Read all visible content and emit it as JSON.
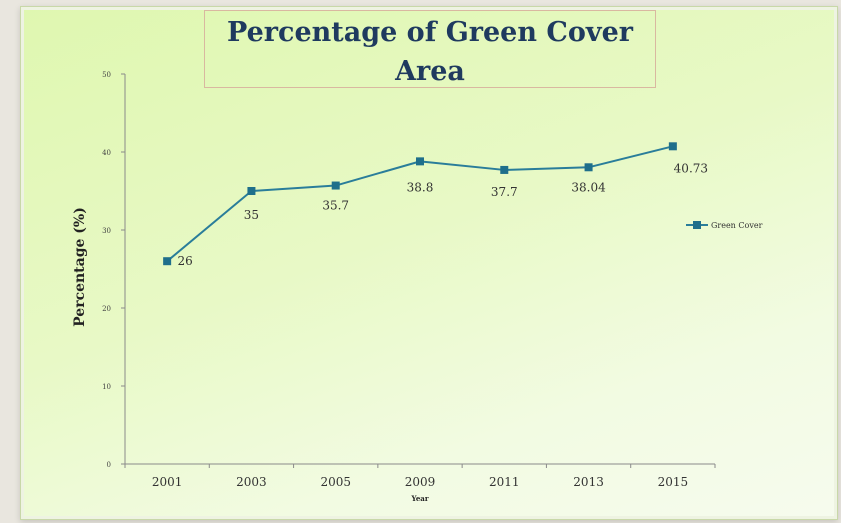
{
  "chart_data": {
    "type": "line",
    "title": "Percentage of Green Cover Area",
    "title_lines": [
      "Percentage of Green Cover",
      "Area"
    ],
    "xlabel": "Year",
    "ylabel": "Percentage (%)",
    "categories": [
      "2001",
      "2003",
      "2005",
      "2009",
      "2011",
      "2013",
      "2015"
    ],
    "series": [
      {
        "name": "Green Cover",
        "values": [
          26,
          35,
          35.7,
          38.8,
          37.7,
          38.04,
          40.73
        ],
        "data_labels": [
          "26",
          "35",
          "35.7",
          "38.8",
          "37.7",
          "38.04",
          "40.73"
        ]
      }
    ],
    "ylim": [
      0,
      50
    ],
    "yticks": [
      "0",
      "10",
      "20",
      "30",
      "40",
      "50"
    ],
    "grid": false,
    "legend_position": "right",
    "colors": {
      "line": "#2a7d9a",
      "marker": "#1f6f8b",
      "title": "#1f3a5f"
    }
  }
}
